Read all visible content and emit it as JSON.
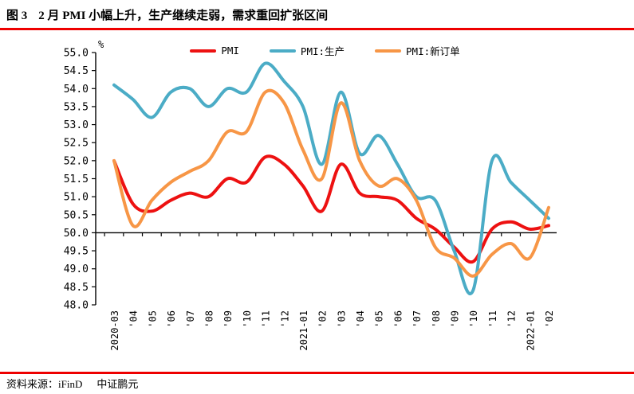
{
  "header": {
    "figure_label": "图 3",
    "title": "2 月 PMI 小幅上升，生产继续走弱，需求重回扩张区间"
  },
  "footer": {
    "source": "资料来源：iFinD",
    "org": "中证鹏元"
  },
  "colors": {
    "divider_red": "#ee0000",
    "axis": "#000000",
    "baseline": "#000000"
  },
  "chart_data": {
    "type": "line",
    "smoothed": true,
    "title": "",
    "xlabel": "",
    "ylabel": "%",
    "ylim": [
      48.0,
      55.0
    ],
    "ytick_step": 0.5,
    "baseline": 50.0,
    "legend_position": "top",
    "grid": false,
    "categories": [
      "2020-03",
      "'04",
      "'05",
      "'06",
      "'07",
      "'08",
      "'09",
      "'10",
      "'11",
      "'12",
      "2021-01",
      "'02",
      "'03",
      "'04",
      "'05",
      "'06",
      "'07",
      "'08",
      "'09",
      "'10",
      "'11",
      "'12",
      "2022-01",
      "'02"
    ],
    "series": [
      {
        "name": "PMI",
        "color": "#ED1111",
        "values": [
          52.0,
          50.8,
          50.6,
          50.9,
          51.1,
          51.0,
          51.5,
          51.4,
          52.1,
          51.9,
          51.3,
          50.6,
          51.9,
          51.1,
          51.0,
          50.9,
          50.4,
          50.1,
          49.6,
          49.2,
          50.1,
          50.3,
          50.1,
          50.2
        ]
      },
      {
        "name": "PMI:生产",
        "color": "#4BACC6",
        "values": [
          54.1,
          53.7,
          53.2,
          53.9,
          54.0,
          53.5,
          54.0,
          53.9,
          54.7,
          54.2,
          53.5,
          51.9,
          53.9,
          52.2,
          52.7,
          51.9,
          51.0,
          50.9,
          49.5,
          48.4,
          52.0,
          51.4,
          50.9,
          50.4
        ]
      },
      {
        "name": "PMI:新订单",
        "color": "#F79646",
        "values": [
          52.0,
          50.2,
          50.9,
          51.4,
          51.7,
          52.0,
          52.8,
          52.8,
          53.9,
          53.6,
          52.3,
          51.5,
          53.6,
          52.0,
          51.3,
          51.5,
          50.9,
          49.6,
          49.3,
          48.8,
          49.4,
          49.7,
          49.3,
          50.7
        ]
      }
    ]
  }
}
